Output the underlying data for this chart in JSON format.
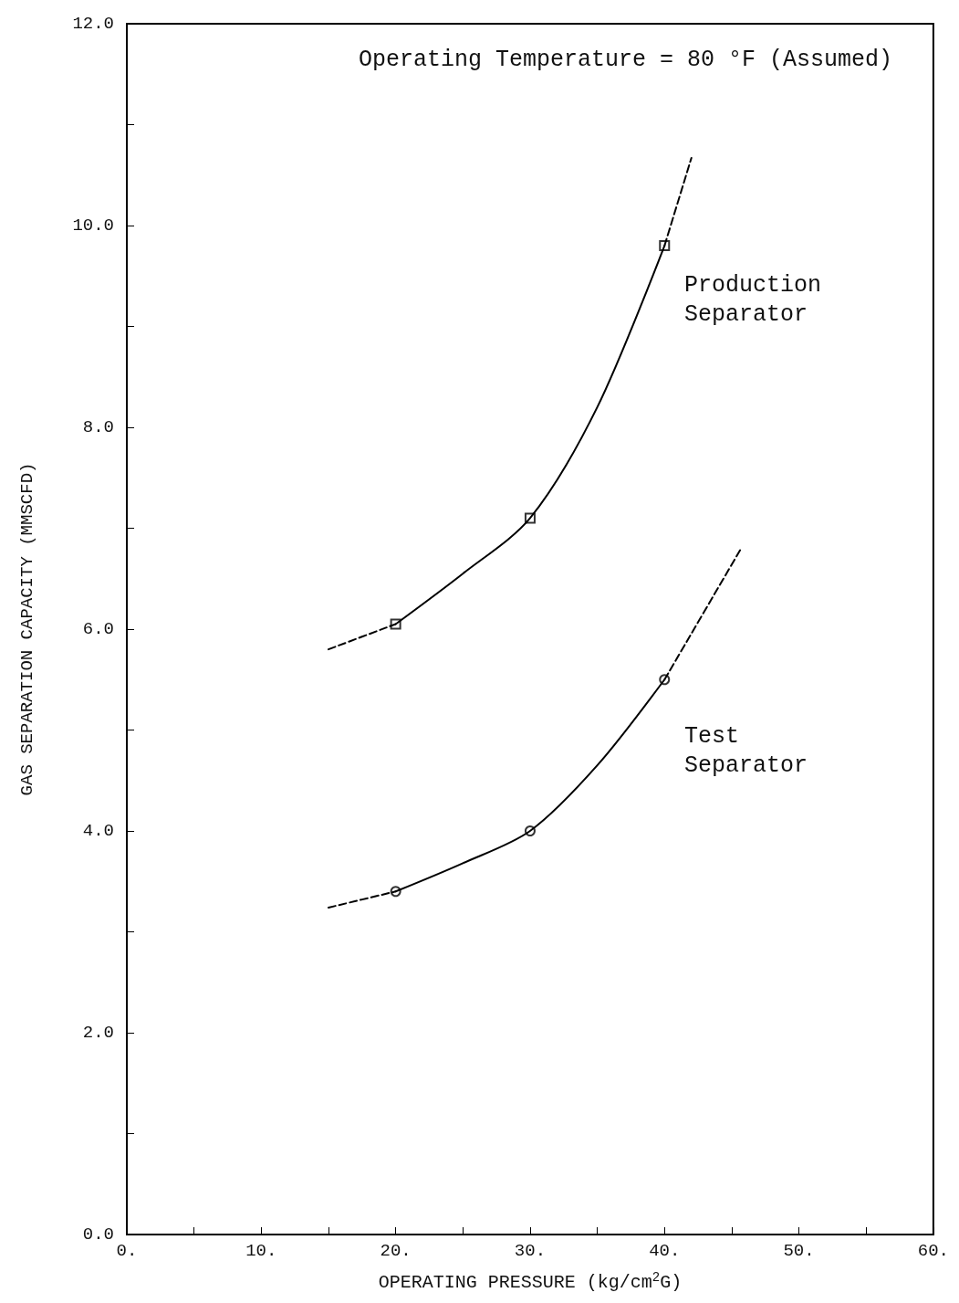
{
  "chart_data": {
    "type": "line",
    "title": "Operating Temperature = 80 °F (Assumed)",
    "xlabel": "OPERATING PRESSURE (kg/cm$^{2}$G)",
    "ylabel": "GAS SEPARATION CAPACITY (MMSCFD)",
    "xlim": [
      0,
      60
    ],
    "xticks": [
      {
        "value": 0,
        "label": "0."
      },
      {
        "value": 5,
        "label": null
      },
      {
        "value": 10,
        "label": "10."
      },
      {
        "value": 15,
        "label": null
      },
      {
        "value": 20,
        "label": "20."
      },
      {
        "value": 25,
        "label": null
      },
      {
        "value": 30,
        "label": "30."
      },
      {
        "value": 35,
        "label": null
      },
      {
        "value": 40,
        "label": "40."
      },
      {
        "value": 45,
        "label": null
      },
      {
        "value": 50,
        "label": "50."
      },
      {
        "value": 55,
        "label": null
      },
      {
        "value": 60,
        "label": "60."
      }
    ],
    "ylim": [
      0,
      12
    ],
    "yticks": [
      {
        "value": 0,
        "label": "0.0"
      },
      {
        "value": 1,
        "label": null
      },
      {
        "value": 2,
        "label": "2.0"
      },
      {
        "value": 3,
        "label": null
      },
      {
        "value": 4,
        "label": "4.0"
      },
      {
        "value": 5,
        "label": null
      },
      {
        "value": 6,
        "label": "6.0"
      },
      {
        "value": 7,
        "label": null
      },
      {
        "value": 8,
        "label": "8.0"
      },
      {
        "value": 9,
        "label": null
      },
      {
        "value": 10,
        "label": "10.0"
      },
      {
        "value": 11,
        "label": null
      },
      {
        "value": 12,
        "label": "12.0"
      }
    ],
    "grid": false,
    "series": [
      {
        "color": "#000000",
        "marker": "none",
        "line_style": "solid",
        "x": [
          20,
          25,
          30,
          35,
          40
        ],
        "values": [
          6.05,
          6.55,
          7.1,
          8.2,
          9.8
        ]
      },
      {
        "color": "#000000",
        "marker": "none",
        "line_style": "dashed",
        "x": [
          15,
          20,
          30,
          40,
          42
        ],
        "values": [
          5.8,
          6.05,
          null,
          9.8,
          10.67
        ]
      },
      {
        "type": "scatter",
        "color": "#000000",
        "marker": "square",
        "x": [
          20,
          30,
          40
        ],
        "values": [
          6.05,
          7.1,
          9.8
        ]
      },
      {
        "color": "#000000",
        "marker": "none",
        "line_style": "solid",
        "x": [
          20,
          25,
          30,
          35,
          40
        ],
        "values": [
          3.4,
          3.68,
          4.0,
          4.65,
          5.5
        ]
      },
      {
        "color": "#000000",
        "marker": "none",
        "line_style": "dashed",
        "x": [
          15,
          20,
          30,
          40,
          45.7
        ],
        "values": [
          3.24,
          3.4,
          null,
          5.5,
          6.8
        ]
      },
      {
        "type": "scatter",
        "color": "#000000",
        "marker": "circle",
        "x": [
          20,
          30,
          40
        ],
        "values": [
          3.4,
          4.0,
          5.5
        ]
      }
    ],
    "annotations": [
      "Production\nSeparator",
      "Test\nSeparator"
    ]
  }
}
